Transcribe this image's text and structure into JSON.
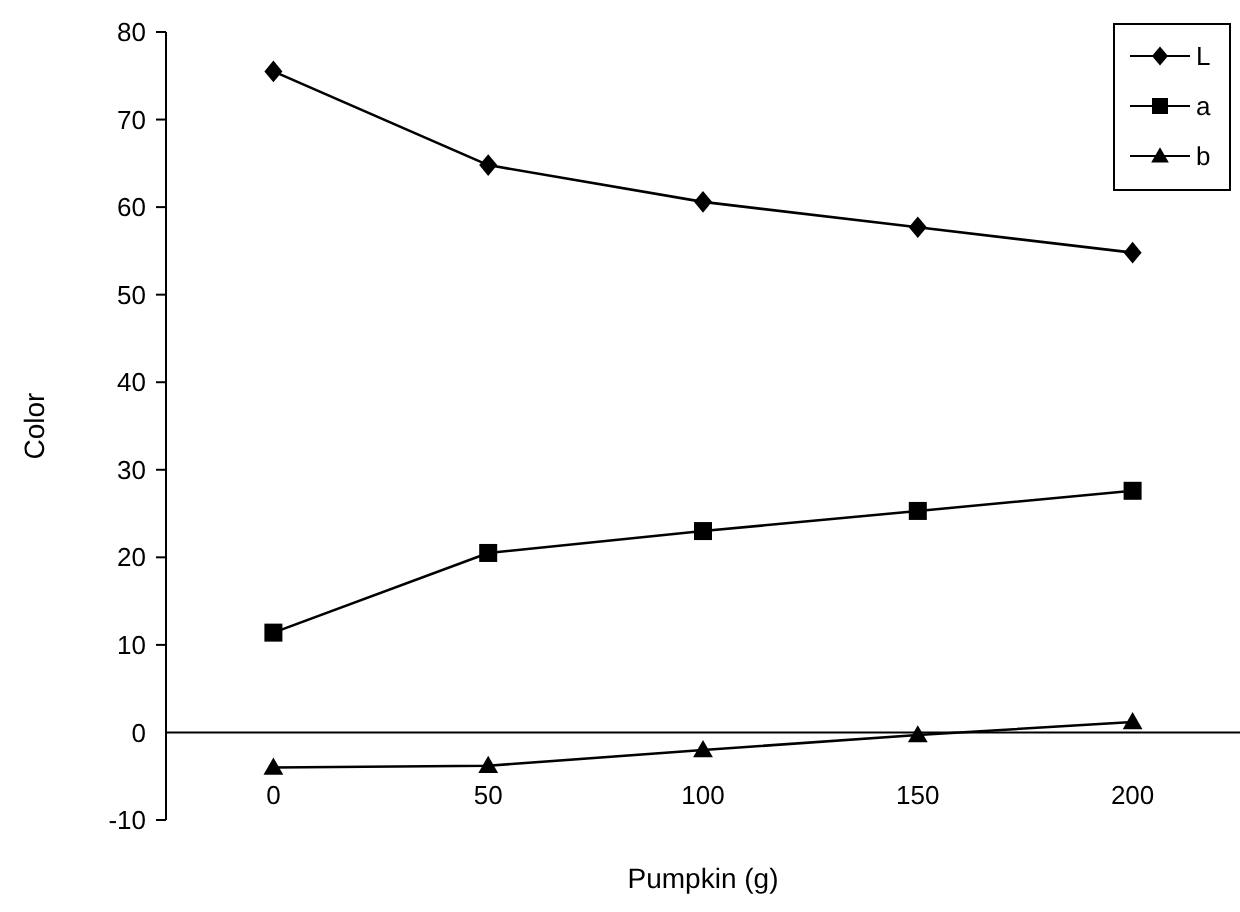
{
  "chart_data": {
    "type": "line",
    "xlabel": "Pumpkin (g)",
    "ylabel": "Color",
    "x": [
      0,
      50,
      100,
      150,
      200
    ],
    "xlim": [
      -25,
      225
    ],
    "xticks": [
      0,
      50,
      100,
      150,
      200
    ],
    "ylim": [
      -10,
      80
    ],
    "yticks": [
      -10,
      0,
      10,
      20,
      30,
      40,
      50,
      60,
      70,
      80
    ],
    "grid": false,
    "legend": "top right",
    "series": [
      {
        "name": "L",
        "color": "#000000",
        "marker": "diamond",
        "values": [
          75.5,
          64.8,
          60.6,
          57.7,
          54.8
        ]
      },
      {
        "name": "a",
        "color": "#000000",
        "marker": "square",
        "values": [
          11.4,
          20.5,
          23.0,
          25.3,
          27.6
        ]
      },
      {
        "name": "b",
        "color": "#000000",
        "marker": "triangle",
        "values": [
          -4.0,
          -3.8,
          -2.0,
          -0.3,
          1.2
        ]
      }
    ]
  }
}
